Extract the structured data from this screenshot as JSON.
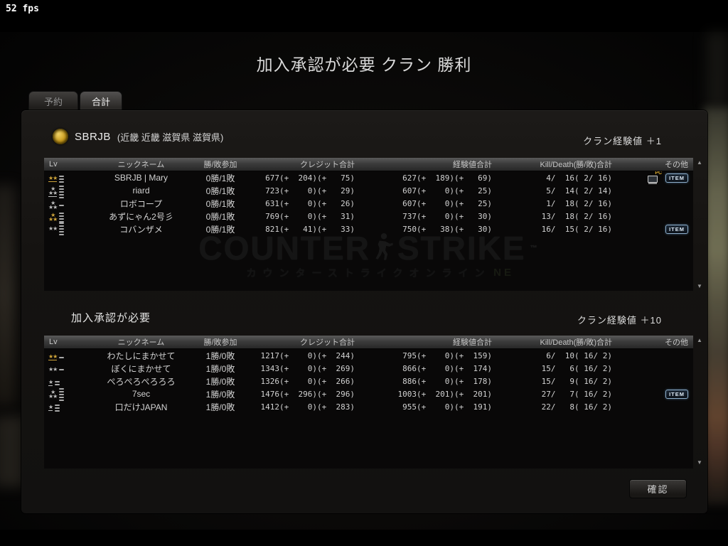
{
  "fps": "52 fps",
  "title": "加入承認が必要 クラン 勝利",
  "tabs": [
    {
      "label": "予約",
      "active": false
    },
    {
      "label": "合計",
      "active": true
    }
  ],
  "colors": {
    "gold": "#cfa43a",
    "silver": "#bdbdbd",
    "item_border": "#8fb0cc"
  },
  "badges": {
    "item": "ITEM",
    "pc": "PC"
  },
  "scrollbar": {
    "up": "▲",
    "down": "▼"
  },
  "watermark": {
    "counter": "COUNTER",
    "strike": "STRIKE",
    "tm": "™",
    "subtitle": "カウンターストライクオンライン",
    "online_fragment": "NE"
  },
  "confirm_label": "確認",
  "sections": [
    {
      "clan_name": "SBRJB",
      "region": "(近畿 近畿 滋賀県 滋賀県)",
      "exp_label": "クラン経験値 ＋1",
      "columns": [
        "Lv",
        "ニックネーム",
        "勝/敗参加",
        "クレジット合計",
        "経験値合計",
        "Kill/Death(勝/敗)合計",
        "その他"
      ],
      "rows": [
        {
          "rank": {
            "lines": [
              "★★"
            ],
            "color": "gold",
            "underline": true,
            "bars": 3
          },
          "name": "SBRJB | Mary",
          "wl": "0勝/1敗",
          "credit": "677(+  204)(+   75)",
          "exp": "627(+  189)(+   69)",
          "kd": " 4/  16( 2/ 16)",
          "pc": true,
          "item": true
        },
        {
          "rank": {
            "lines": [
              "★",
              "★★"
            ],
            "color": "silver",
            "underline": true,
            "bars": 5
          },
          "name": "riard",
          "wl": "0勝/1敗",
          "credit": "723(+    0)(+   29)",
          "exp": "607(+    0)(+   25)",
          "kd": " 5/  14( 2/ 14)",
          "pc": false,
          "item": false
        },
        {
          "rank": {
            "lines": [
              "★",
              "★★"
            ],
            "color": "silver",
            "underline": false,
            "bars": 1
          },
          "name": "ロボコープ",
          "wl": "0勝/1敗",
          "credit": "631(+    0)(+   26)",
          "exp": "607(+    0)(+   25)",
          "kd": " 1/  18( 2/ 16)",
          "pc": false,
          "item": false
        },
        {
          "rank": {
            "lines": [
              "★",
              "★★"
            ],
            "color": "gold",
            "underline": false,
            "bars": 4
          },
          "name": "あずにゃん2号彡",
          "wl": "0勝/1敗",
          "credit": "769(+    0)(+   31)",
          "exp": "737(+    0)(+   30)",
          "kd": "13/  18( 2/ 16)",
          "pc": false,
          "item": false
        },
        {
          "rank": {
            "lines": [
              "★★"
            ],
            "color": "silver",
            "underline": false,
            "bars": 5
          },
          "name": "コバンザメ",
          "wl": "0勝/1敗",
          "credit": "821(+   41)(+   33)",
          "exp": "750(+   38)(+   30)",
          "kd": "16/  15( 2/ 16)",
          "pc": false,
          "item": true
        }
      ]
    },
    {
      "section_title": "加入承認が必要",
      "exp_label": "クラン経験値 ＋10",
      "columns": [
        "Lv",
        "ニックネーム",
        "勝/敗参加",
        "クレジット合計",
        "経験値合計",
        "Kill/Death(勝/敗)合計",
        "その他"
      ],
      "rows": [
        {
          "rank": {
            "lines": [
              "★★"
            ],
            "color": "gold",
            "underline": true,
            "bars": 1
          },
          "name": "わたしにまかせて",
          "wl": "1勝/0敗",
          "credit": "1217(+    0)(+  244)",
          "exp": "795(+    0)(+  159)",
          "kd": " 6/  10( 16/ 2)",
          "pc": false,
          "item": false
        },
        {
          "rank": {
            "lines": [
              "★★"
            ],
            "color": "silver",
            "underline": false,
            "bars": 1
          },
          "name": "ぼくにまかせて",
          "wl": "1勝/0敗",
          "credit": "1343(+    0)(+  269)",
          "exp": "866(+    0)(+  174)",
          "kd": "15/   6( 16/ 2)",
          "pc": false,
          "item": false
        },
        {
          "rank": {
            "lines": [
              "★"
            ],
            "color": "silver",
            "underline": true,
            "bars": 2
          },
          "name": "ぺろぺろぺろろろ",
          "wl": "1勝/0敗",
          "credit": "1326(+    0)(+  266)",
          "exp": "886(+    0)(+  178)",
          "kd": "15/   9( 16/ 2)",
          "pc": false,
          "item": false
        },
        {
          "rank": {
            "lines": [
              "★",
              "★★"
            ],
            "color": "silver",
            "underline": false,
            "bars": 5
          },
          "name": "7sec",
          "wl": "1勝/0敗",
          "credit": "1476(+  296)(+  296)",
          "exp": "1003(+  201)(+  201)",
          "kd": "27/   7( 16/ 2)",
          "pc": false,
          "item": true
        },
        {
          "rank": {
            "lines": [
              "★"
            ],
            "color": "silver",
            "underline": true,
            "bars": 3
          },
          "name": "口だけJAPAN",
          "wl": "1勝/0敗",
          "credit": "1412(+    0)(+  283)",
          "exp": "955(+    0)(+  191)",
          "kd": "22/   8( 16/ 2)",
          "pc": false,
          "item": false
        }
      ]
    }
  ]
}
